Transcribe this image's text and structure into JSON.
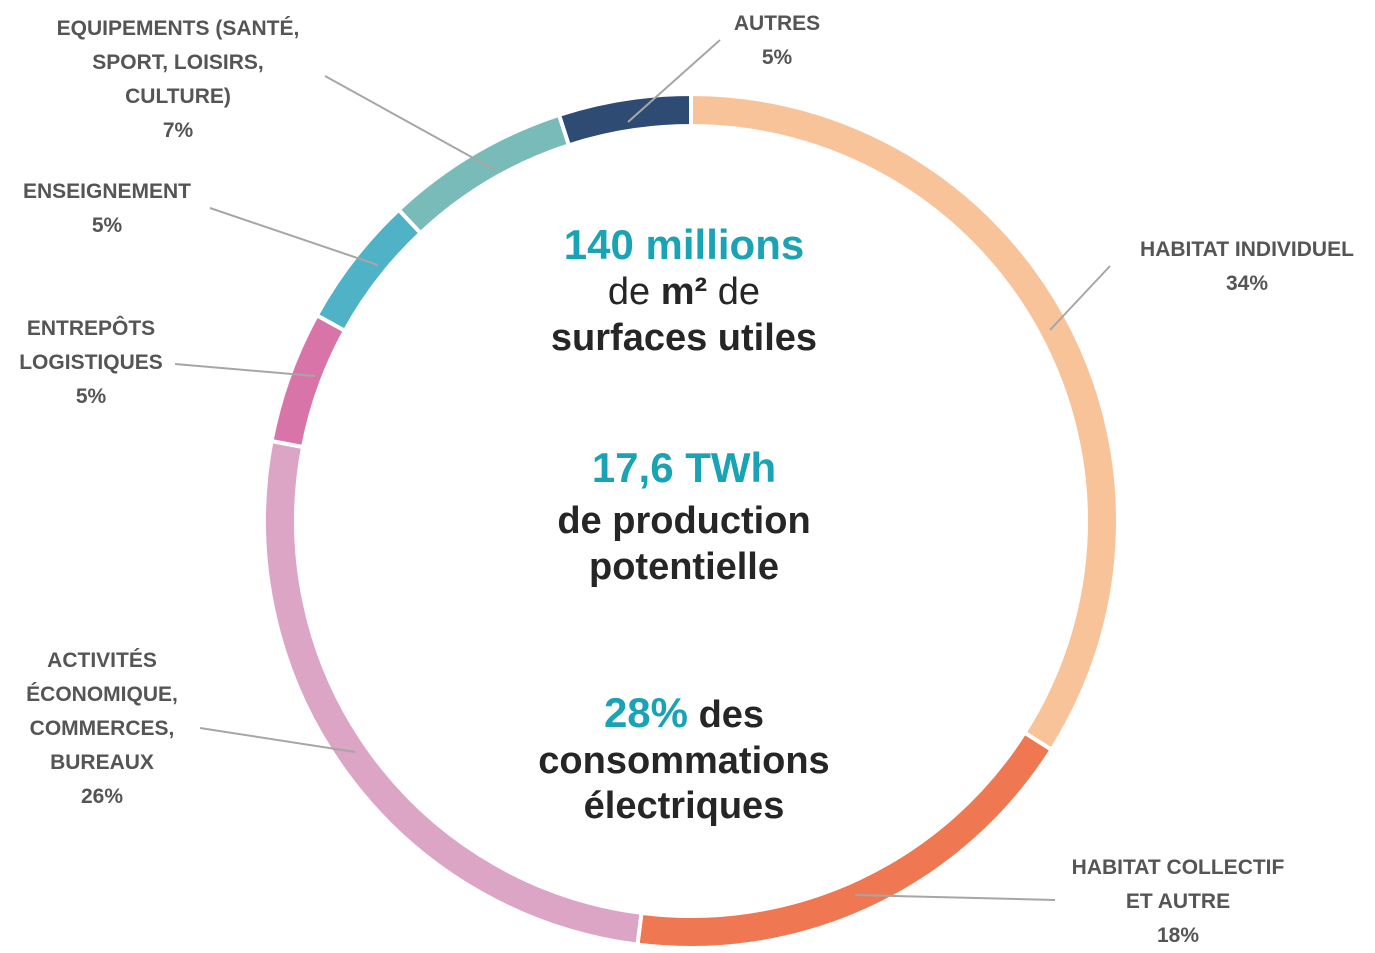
{
  "chart_data": {
    "type": "pie",
    "donut": true,
    "slices": [
      {
        "label_lines": [
          "HABITAT INDIVIDUEL"
        ],
        "value": 34,
        "color": "#f9c39a"
      },
      {
        "label_lines": [
          "HABITAT COLLECTIF",
          "ET AUTRE"
        ],
        "value": 18,
        "color": "#ef7751"
      },
      {
        "label_lines": [
          "ACTIVITÉS",
          "ÉCONOMIQUE,",
          "COMMERCES,",
          "BUREAUX"
        ],
        "value": 26,
        "color": "#dca4c5"
      },
      {
        "label_lines": [
          "ENTREPÔTS",
          "LOGISTIQUES"
        ],
        "value": 5,
        "color": "#d874a8"
      },
      {
        "label_lines": [
          "ENSEIGNEMENT"
        ],
        "value": 5,
        "color": "#4fb2c6"
      },
      {
        "label_lines": [
          "EQUIPEMENTS (SANTÉ,",
          "SPORT, LOISIRS,",
          "CULTURE)"
        ],
        "value": 7,
        "color": "#78bbb8"
      },
      {
        "label_lines": [
          "AUTRES"
        ],
        "value": 5,
        "color": "#2e4b73"
      }
    ],
    "value_suffix": "%"
  },
  "center": {
    "block1_value": "140 millions",
    "block1_pre": "de",
    "block1_unit": "m²",
    "block1_post": "de",
    "block1_line3": "surfaces utiles",
    "block2_value": "17,6 TWh",
    "block2_line2": "de production",
    "block2_line3": "potentielle",
    "block3_value": "28%",
    "block3_rest": "des",
    "block3_line2": "consommations",
    "block3_line3": "électriques"
  },
  "colors": {
    "accent": "#1aa3b4",
    "text": "#262626",
    "label": "#555555",
    "leader": "#a6a6a6"
  }
}
